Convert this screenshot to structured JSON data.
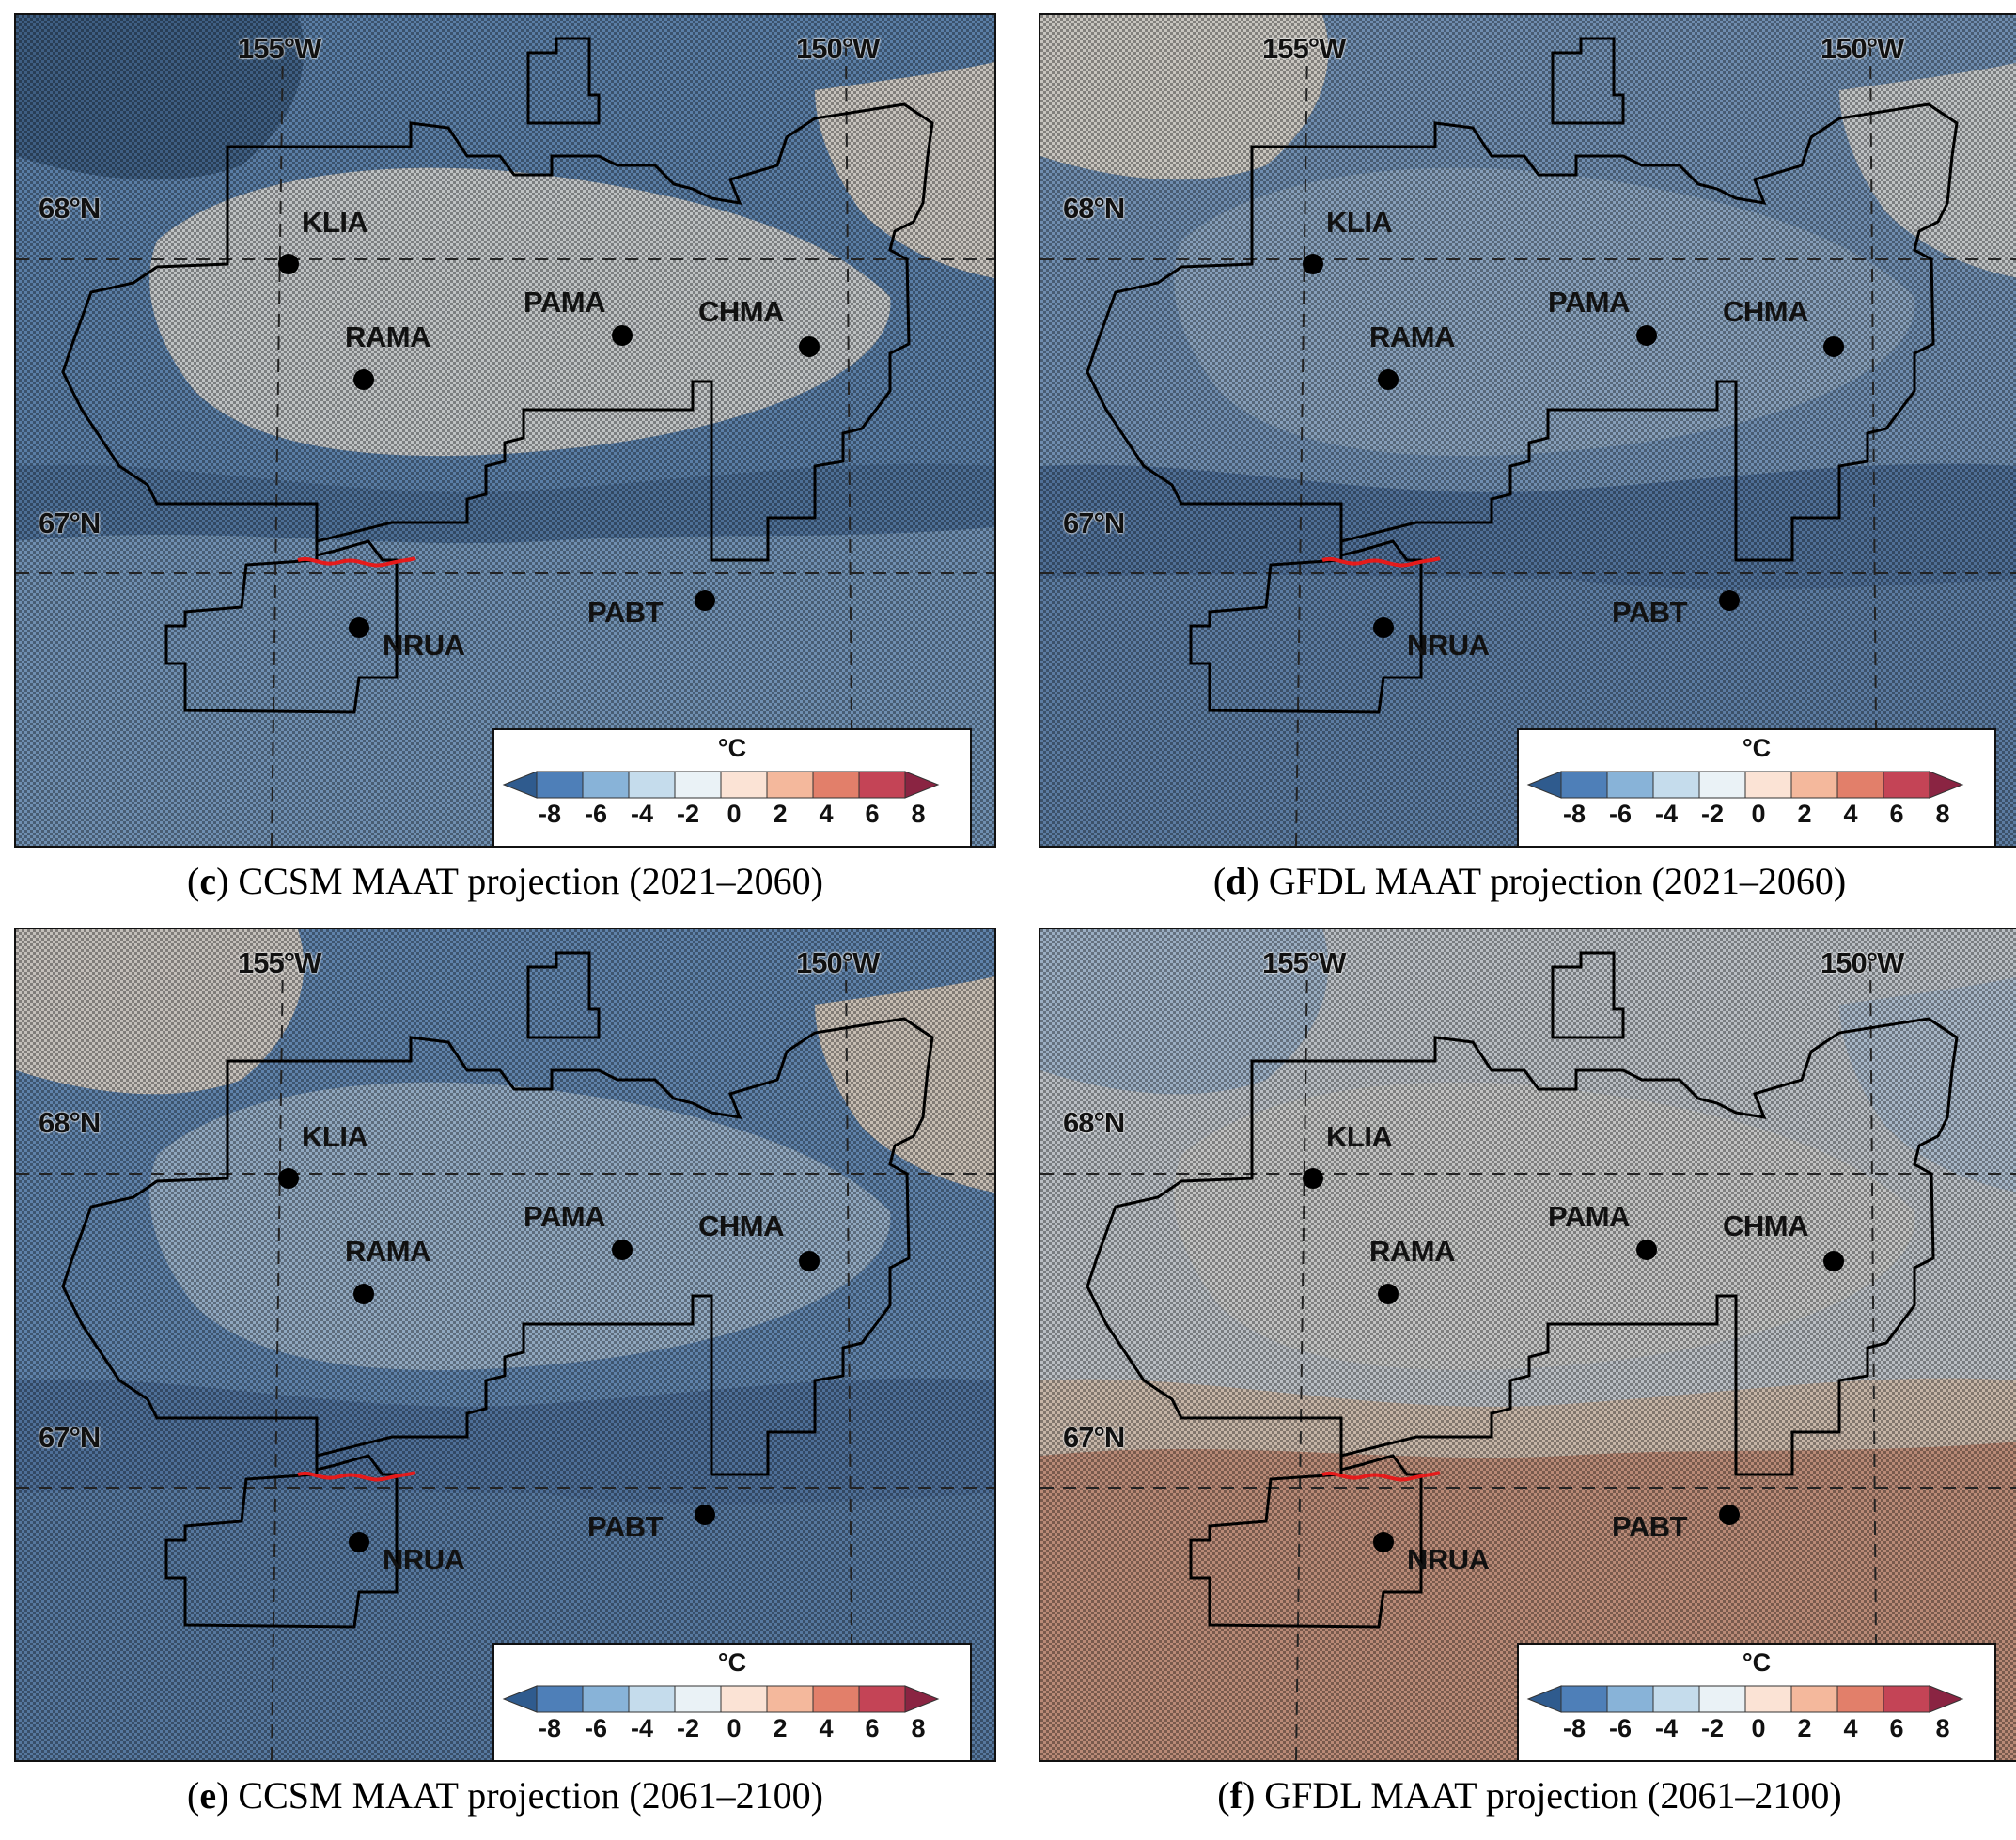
{
  "panels": [
    {
      "letter": "c",
      "caption": " CCSM MAAT projection (2021–2060)",
      "theme": {
        "base": "#5a7ea6",
        "zones": [
          "#3f5f83",
          "#4d6f96",
          "#6f8fb1",
          "#bfc2c4",
          "#c7c3bd"
        ]
      }
    },
    {
      "letter": "d",
      "caption": " GFDL MAAT projection (2021–2060)",
      "theme": {
        "base": "#6f8daf",
        "zones": [
          "#5c7ca2",
          "#4f6f97",
          "#869fba",
          "#bfc2c4",
          "#c8c5bf"
        ]
      }
    },
    {
      "letter": "e",
      "caption": " CCSM MAAT projection (2061–2100)",
      "theme": {
        "base": "#5f82aa",
        "zones": [
          "#56789f",
          "#4e6f98",
          "#90a8c0",
          "#c4c0bb",
          "#c6bdb3"
        ]
      }
    },
    {
      "letter": "f",
      "caption": " GFDL MAAT projection (2061–2100)",
      "theme": {
        "base": "#b9bec4",
        "zones": [
          "#9aaec3",
          "#a7b7c8",
          "#c2c3c2",
          "#c6b5a7",
          "#b98a77"
        ]
      }
    }
  ],
  "map": {
    "lon_labels": [
      "155°W",
      "150°W"
    ],
    "lat_labels": [
      "68°N",
      "67°N"
    ],
    "stations": [
      "KLIA",
      "RAMA",
      "PAMA",
      "CHMA",
      "PABT",
      "NRUA"
    ]
  },
  "legend": {
    "unit": "°C",
    "ticks": [
      "-8",
      "-6",
      "-4",
      "-2",
      "0",
      "2",
      "4",
      "6",
      "8"
    ],
    "colors": [
      "#2f5b8e",
      "#4e7fb8",
      "#88b3d8",
      "#c5dcec",
      "#eaf2f6",
      "#fbe3d5",
      "#f4b89c",
      "#e27f6a",
      "#c44456",
      "#8a2442"
    ]
  }
}
